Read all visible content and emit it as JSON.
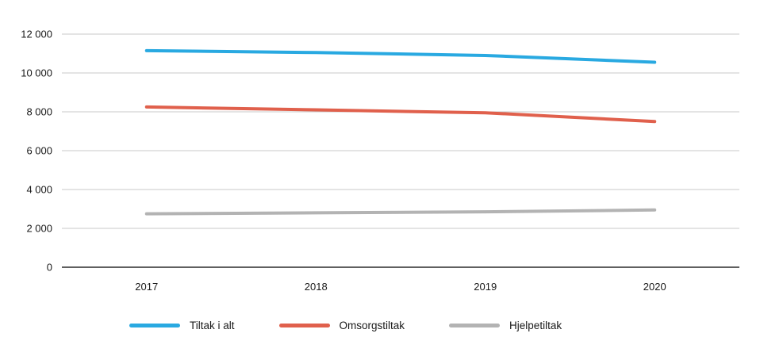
{
  "chart_data": {
    "type": "line",
    "title": "",
    "xlabel": "",
    "ylabel": "",
    "x": [
      "2017",
      "2018",
      "2019",
      "2020"
    ],
    "series": [
      {
        "name": "Tiltak i alt",
        "color": "#29A9E1",
        "values": [
          11150,
          11050,
          10900,
          10550
        ]
      },
      {
        "name": "Omsorgstiltak",
        "color": "#E0604C",
        "values": [
          8250,
          8100,
          7950,
          7500
        ]
      },
      {
        "name": "Hjelpetiltak",
        "color": "#B3B3B3",
        "values": [
          2750,
          2800,
          2850,
          2950
        ]
      }
    ],
    "ylim": [
      0,
      12000
    ],
    "ytick_step": 2000,
    "ytick_labels": [
      "0",
      "2 000",
      "4 000",
      "6 000",
      "8 000",
      "10 000",
      "12 000"
    ],
    "grid": "horizontal",
    "legend_position": "bottom",
    "axis_color": "#000000",
    "grid_color": "#c9c9c9"
  }
}
